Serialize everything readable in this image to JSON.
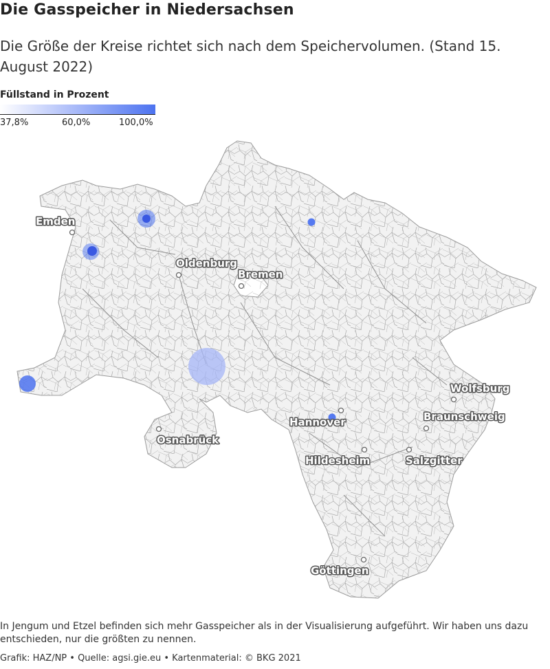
{
  "title": "Die Gasspeicher in Niedersachsen",
  "subtitle": "Die Größe der Kreise richtet sich nach dem Speichervolumen. (Stand 15. August 2022)",
  "legend": {
    "title": "Füllstand in Prozent",
    "min_label": "37,8%",
    "mid_label": "60,0%",
    "max_label": "100,0%",
    "color_low": "#ffffff",
    "color_high": "#4d73f0"
  },
  "map": {
    "region": "Niedersachsen",
    "fill_color": "#f2f2f2",
    "border_color": "#9a9a9a",
    "cities": [
      {
        "name": "Emden"
      },
      {
        "name": "Oldenburg"
      },
      {
        "name": "Bremen"
      },
      {
        "name": "Osnabrück"
      },
      {
        "name": "Hannover"
      },
      {
        "name": "Wolfsburg"
      },
      {
        "name": "Braunschweig"
      },
      {
        "name": "Salzgitter"
      },
      {
        "name": "Hildesheim"
      },
      {
        "name": "Göttingen"
      }
    ],
    "storage_sites": [
      {
        "size": "medium",
        "fill_color": "#4d73f0"
      },
      {
        "size": "medium",
        "fill_color": "#4d73f0"
      },
      {
        "size": "small",
        "fill_color": "#4d73f0"
      },
      {
        "size": "large",
        "fill_color": "#a5b6f7"
      },
      {
        "size": "medium",
        "fill_color": "#4d73f0"
      },
      {
        "size": "small",
        "fill_color": "#4d73f0"
      }
    ]
  },
  "footnote": "In Jengum und Etzel befinden sich mehr Gasspeicher als in der Visualisierung aufgeführt. Wir haben uns dazu entschieden, nur die größten zu nennen.",
  "credits": "Grafik: HAZ/NP • Quelle: agsi.gie.eu • Kartenmaterial: © BKG 2021"
}
